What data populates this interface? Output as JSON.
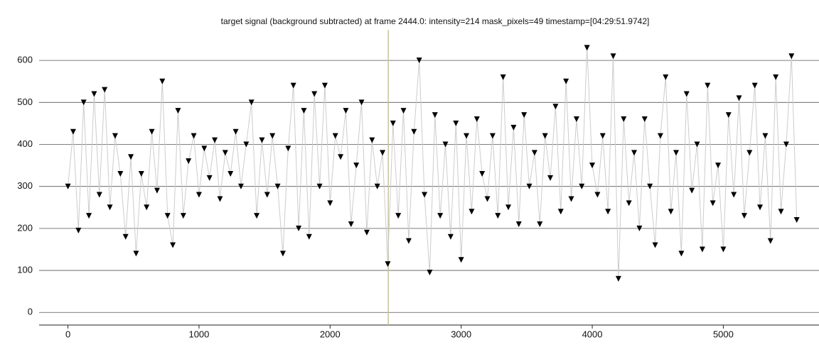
{
  "chart_data": {
    "type": "line",
    "title": "target signal (background subtracted) at frame 2444.0: intensity=214 mask_pixels=49 timestamp=[04:29:51.9742]",
    "x": [
      0,
      40,
      80,
      120,
      160,
      200,
      240,
      280,
      320,
      360,
      400,
      440,
      480,
      520,
      560,
      600,
      640,
      680,
      720,
      760,
      800,
      840,
      880,
      920,
      960,
      1000,
      1040,
      1080,
      1120,
      1160,
      1200,
      1240,
      1280,
      1320,
      1360,
      1400,
      1440,
      1480,
      1520,
      1560,
      1600,
      1640,
      1680,
      1720,
      1760,
      1800,
      1840,
      1880,
      1920,
      1960,
      2000,
      2040,
      2080,
      2120,
      2160,
      2200,
      2240,
      2280,
      2320,
      2360,
      2400,
      2440,
      2480,
      2520,
      2560,
      2600,
      2640,
      2680,
      2720,
      2760,
      2800,
      2840,
      2880,
      2920,
      2960,
      3000,
      3040,
      3080,
      3120,
      3160,
      3200,
      3240,
      3280,
      3320,
      3360,
      3400,
      3440,
      3480,
      3520,
      3560,
      3600,
      3640,
      3680,
      3720,
      3760,
      3800,
      3840,
      3880,
      3920,
      3960,
      4000,
      4040,
      4080,
      4120,
      4160,
      4200,
      4240,
      4280,
      4320,
      4360,
      4400,
      4440,
      4480,
      4520,
      4560,
      4600,
      4640,
      4680,
      4720,
      4760,
      4800,
      4840,
      4880,
      4920,
      4960,
      5000,
      5040,
      5080,
      5120,
      5160,
      5200,
      5240,
      5280,
      5320,
      5360,
      5400,
      5440,
      5480,
      5520,
      5560
    ],
    "values": [
      300,
      430,
      195,
      500,
      230,
      520,
      280,
      530,
      250,
      420,
      330,
      180,
      370,
      140,
      330,
      250,
      430,
      290,
      550,
      230,
      160,
      480,
      230,
      360,
      420,
      280,
      390,
      320,
      410,
      270,
      380,
      330,
      430,
      300,
      400,
      500,
      230,
      410,
      280,
      420,
      300,
      140,
      390,
      540,
      200,
      480,
      180,
      520,
      300,
      540,
      260,
      420,
      370,
      480,
      210,
      350,
      500,
      190,
      410,
      300,
      380,
      115,
      450,
      230,
      480,
      170,
      430,
      600,
      280,
      95,
      470,
      230,
      400,
      180,
      450,
      125,
      420,
      240,
      460,
      330,
      270,
      420,
      230,
      560,
      250,
      440,
      210,
      470,
      300,
      380,
      210,
      420,
      320,
      490,
      240,
      550,
      270,
      460,
      300,
      630,
      350,
      280,
      420,
      240,
      610,
      80,
      460,
      260,
      380,
      200,
      460,
      300,
      160,
      420,
      560,
      240,
      380,
      140,
      520,
      290,
      400,
      150,
      540,
      260,
      350,
      150,
      470,
      280,
      510,
      230,
      380,
      540,
      250,
      420,
      170,
      560,
      240,
      400,
      610,
      220
    ],
    "color": "#000000",
    "line_color": "#cccccc",
    "frame_line": 2444,
    "frame_line_color": "#c8c49a",
    "xlim": [
      -220,
      5730
    ],
    "ylim": [
      -30,
      656
    ],
    "xticks": [
      0,
      1000,
      2000,
      3000,
      4000,
      5000
    ],
    "yticks": [
      0,
      100,
      200,
      300,
      400,
      500,
      600
    ],
    "grid": true
  }
}
